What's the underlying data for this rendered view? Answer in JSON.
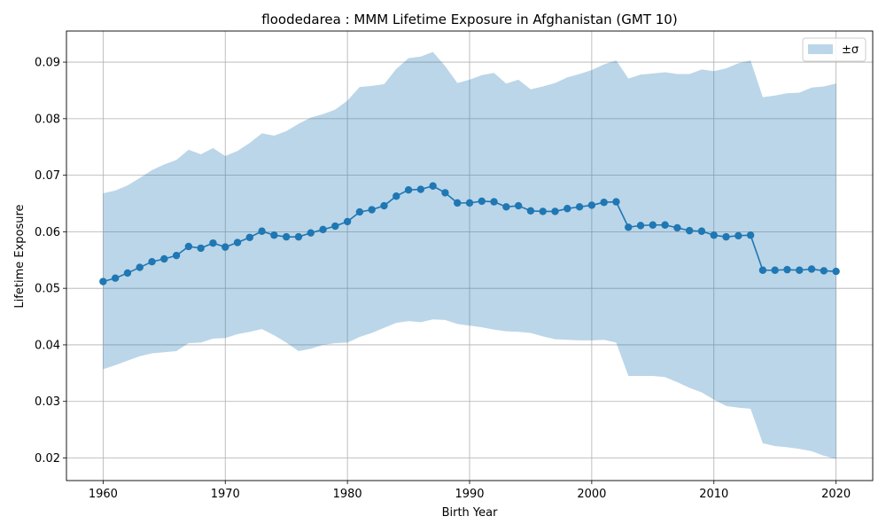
{
  "chart_data": {
    "type": "line",
    "title": "floodedarea : MMM Lifetime Exposure in Afghanistan (GMT 10)",
    "xlabel": "Birth Year",
    "ylabel": "Lifetime Exposure",
    "xlim": [
      1957,
      2023
    ],
    "ylim": [
      0.016,
      0.0955
    ],
    "xticks": [
      1960,
      1970,
      1980,
      1990,
      2000,
      2010,
      2020
    ],
    "yticks": [
      0.02,
      0.03,
      0.04,
      0.05,
      0.06,
      0.07,
      0.08,
      0.09
    ],
    "ytick_labels": [
      "0.02",
      "0.03",
      "0.04",
      "0.05",
      "0.06",
      "0.07",
      "0.08",
      "0.09"
    ],
    "grid": true,
    "legend": {
      "placement": "top-right",
      "entries": [
        "±σ"
      ]
    },
    "colors": {
      "line": "#1f77b4",
      "band": "#1f77b4"
    },
    "x": [
      1960,
      1961,
      1962,
      1963,
      1964,
      1965,
      1966,
      1967,
      1968,
      1969,
      1970,
      1971,
      1972,
      1973,
      1974,
      1975,
      1976,
      1977,
      1978,
      1979,
      1980,
      1981,
      1982,
      1983,
      1984,
      1985,
      1986,
      1987,
      1988,
      1989,
      1990,
      1991,
      1992,
      1993,
      1994,
      1995,
      1996,
      1997,
      1998,
      1999,
      2000,
      2001,
      2002,
      2003,
      2004,
      2005,
      2006,
      2007,
      2008,
      2009,
      2010,
      2011,
      2012,
      2013,
      2014,
      2015,
      2016,
      2017,
      2018,
      2019,
      2020
    ],
    "series": [
      {
        "values": [
          0.0512,
          0.0518,
          0.0527,
          0.0537,
          0.0547,
          0.0552,
          0.0558,
          0.0574,
          0.0571,
          0.058,
          0.0573,
          0.0581,
          0.059,
          0.0601,
          0.0594,
          0.0591,
          0.0591,
          0.0598,
          0.0604,
          0.061,
          0.0618,
          0.0635,
          0.0639,
          0.0646,
          0.0663,
          0.0674,
          0.0675,
          0.0681,
          0.0669,
          0.0651,
          0.0651,
          0.0654,
          0.0653,
          0.0644,
          0.0646,
          0.0637,
          0.0636,
          0.0636,
          0.0641,
          0.0644,
          0.0647,
          0.0652,
          0.0653,
          0.0608,
          0.0611,
          0.0612,
          0.0612,
          0.0607,
          0.0602,
          0.0601,
          0.0594,
          0.0591,
          0.0593,
          0.0594,
          0.0532,
          0.0532,
          0.0533,
          0.0532,
          0.0534,
          0.0531,
          0.053
        ]
      }
    ],
    "band": {
      "name": "±σ",
      "upper": [
        0.0668,
        0.0673,
        0.0682,
        0.0695,
        0.0709,
        0.0719,
        0.0727,
        0.0745,
        0.0737,
        0.0748,
        0.0734,
        0.0743,
        0.0757,
        0.0774,
        0.077,
        0.0778,
        0.0791,
        0.0802,
        0.0808,
        0.0816,
        0.0832,
        0.0856,
        0.0858,
        0.0861,
        0.0888,
        0.0907,
        0.091,
        0.0918,
        0.0893,
        0.0863,
        0.0869,
        0.0877,
        0.0881,
        0.0862,
        0.0869,
        0.0852,
        0.0857,
        0.0863,
        0.0873,
        0.0879,
        0.0886,
        0.0896,
        0.0903,
        0.0871,
        0.0878,
        0.088,
        0.0882,
        0.0879,
        0.0879,
        0.0887,
        0.0884,
        0.0889,
        0.0898,
        0.0903,
        0.0838,
        0.0841,
        0.0845,
        0.0846,
        0.0855,
        0.0857,
        0.0862
      ],
      "lower": [
        0.0357,
        0.0364,
        0.0372,
        0.038,
        0.0385,
        0.0387,
        0.0389,
        0.0403,
        0.0404,
        0.0411,
        0.0412,
        0.0419,
        0.0423,
        0.0428,
        0.0417,
        0.0404,
        0.0389,
        0.0393,
        0.04,
        0.0403,
        0.0404,
        0.0414,
        0.0421,
        0.043,
        0.0439,
        0.0442,
        0.044,
        0.0445,
        0.0444,
        0.0437,
        0.0434,
        0.0431,
        0.0427,
        0.0424,
        0.0423,
        0.0421,
        0.0415,
        0.041,
        0.0409,
        0.0408,
        0.0408,
        0.0409,
        0.0404,
        0.0345,
        0.0345,
        0.0345,
        0.0343,
        0.0334,
        0.0324,
        0.0316,
        0.0303,
        0.0292,
        0.0289,
        0.0287,
        0.0226,
        0.0221,
        0.0219,
        0.0216,
        0.0212,
        0.0204,
        0.0198
      ]
    }
  }
}
